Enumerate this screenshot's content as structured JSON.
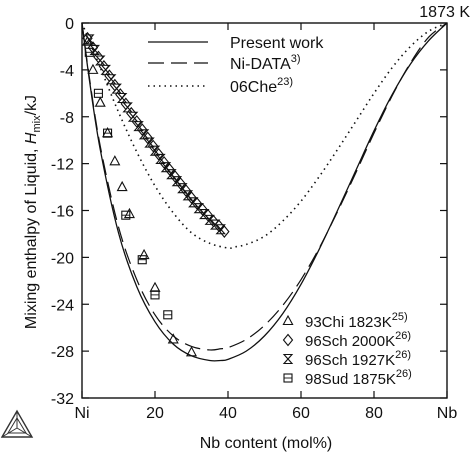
{
  "chart_data": {
    "type": "line",
    "temperature_label": "1873 K",
    "ylabel_main": "Mixing enthalpy of Liquid, ",
    "ylabel_symbol": "H",
    "ylabel_subscript": "mix",
    "ylabel_unit": "/kJ",
    "xlabel": "Nb content (mol%)",
    "xlim": [
      0,
      100
    ],
    "ylim": [
      -32,
      0
    ],
    "x_ticks": [
      {
        "value": 0,
        "label": "Ni"
      },
      {
        "value": 20,
        "label": "20"
      },
      {
        "value": 40,
        "label": "40"
      },
      {
        "value": 60,
        "label": "60"
      },
      {
        "value": 80,
        "label": "80"
      },
      {
        "value": 100,
        "label": "Nb"
      }
    ],
    "y_ticks": [
      {
        "value": 0,
        "label": "0"
      },
      {
        "value": -4,
        "label": "-4"
      },
      {
        "value": -8,
        "label": "-8"
      },
      {
        "value": -12,
        "label": "-12"
      },
      {
        "value": -16,
        "label": "-16"
      },
      {
        "value": -20,
        "label": "-20"
      },
      {
        "value": -24,
        "label": "-24"
      },
      {
        "value": -28,
        "label": "-28"
      },
      {
        "value": -32,
        "label": "-32"
      }
    ],
    "line_series": [
      {
        "name": "Present work",
        "sup": "",
        "style": "solid",
        "x": [
          0,
          2,
          5,
          10,
          15,
          20,
          25,
          30,
          35,
          38,
          40,
          45,
          50,
          55,
          60,
          65,
          70,
          75,
          80,
          85,
          90,
          95,
          100
        ],
        "y": [
          0,
          -4.8,
          -10.8,
          -17.9,
          -22.5,
          -25.5,
          -27.4,
          -28.4,
          -28.8,
          -28.8,
          -28.7,
          -28.0,
          -26.7,
          -24.8,
          -22.3,
          -19.3,
          -16.0,
          -12.6,
          -9.2,
          -6.1,
          -3.5,
          -1.5,
          0
        ]
      },
      {
        "name": "Ni-DATA",
        "sup": "3)",
        "style": "dashed",
        "x": [
          0,
          2,
          5,
          10,
          15,
          20,
          25,
          30,
          35,
          38,
          40,
          45,
          50,
          55,
          60,
          65,
          70,
          75,
          80,
          85,
          90,
          95,
          100
        ],
        "y": [
          0,
          -4.6,
          -10.5,
          -17.4,
          -21.9,
          -24.9,
          -26.7,
          -27.6,
          -27.9,
          -27.8,
          -27.7,
          -27.0,
          -25.8,
          -24.1,
          -21.9,
          -19.2,
          -16.1,
          -12.8,
          -9.4,
          -6.2,
          -3.4,
          -1.2,
          0
        ]
      },
      {
        "name": "06Che",
        "sup": "23)",
        "style": "dotted",
        "x": [
          0,
          5,
          10,
          15,
          20,
          25,
          30,
          35,
          40,
          42,
          45,
          50,
          55,
          60,
          65,
          70,
          75,
          80,
          85,
          90,
          95,
          100
        ],
        "y": [
          0,
          -3.8,
          -7.6,
          -11.0,
          -13.9,
          -16.2,
          -17.9,
          -18.8,
          -19.2,
          -19.1,
          -18.9,
          -18.2,
          -16.9,
          -15.2,
          -13.1,
          -10.8,
          -8.4,
          -6.0,
          -3.8,
          -2.0,
          -0.7,
          0
        ]
      }
    ],
    "marker_series": [
      {
        "name": "93Chi 1823K",
        "sup": "25)",
        "marker": "triangle",
        "x": [
          1.5,
          3.0,
          5.0,
          7.0,
          9.0,
          11.0,
          13.0,
          17.0,
          20.0,
          25.0,
          30.0
        ],
        "y": [
          -1.6,
          -4.0,
          -6.8,
          -9.4,
          -11.8,
          -14.0,
          -16.3,
          -19.8,
          -22.6,
          -27.0,
          -28.1
        ]
      },
      {
        "name": "96Sch 2000K",
        "sup": "26)",
        "marker": "diamond",
        "x": [
          1.5,
          3.0,
          4.5,
          6.0,
          7.5,
          9.0,
          10.5,
          12.0,
          13.5,
          15.0,
          16.5,
          18.0,
          19.5,
          21.0,
          22.5,
          24.0,
          25.5,
          27.0,
          28.5,
          30.0,
          31.5,
          33.0,
          34.5,
          36.0,
          37.5,
          39.0
        ],
        "y": [
          -1.3,
          -2.1,
          -2.9,
          -3.7,
          -4.5,
          -5.3,
          -6.1,
          -6.9,
          -7.7,
          -8.4,
          -9.1,
          -9.8,
          -10.5,
          -11.2,
          -11.9,
          -12.5,
          -13.1,
          -13.7,
          -14.3,
          -14.9,
          -15.4,
          -15.9,
          -16.4,
          -16.9,
          -17.3,
          -17.8
        ]
      },
      {
        "name": "96Sch 1927K",
        "sup": "26)",
        "marker": "hourglass",
        "x": [
          2.0,
          3.5,
          5.0,
          6.5,
          8.0,
          9.5,
          11.0,
          12.5,
          14.0,
          15.5,
          17.0,
          18.5,
          20.0,
          21.5,
          23.0,
          24.5,
          26.0,
          27.5,
          29.0,
          30.5,
          32.0,
          33.5,
          35.0,
          36.5,
          38.0
        ],
        "y": [
          -1.4,
          -2.3,
          -3.2,
          -4.0,
          -4.8,
          -5.6,
          -6.4,
          -7.2,
          -8.0,
          -8.8,
          -9.5,
          -10.2,
          -10.9,
          -11.6,
          -12.3,
          -12.9,
          -13.5,
          -14.1,
          -14.7,
          -15.3,
          -15.8,
          -16.3,
          -16.8,
          -17.2,
          -17.6
        ]
      },
      {
        "name": "98Sud 1875K",
        "sup": "26)",
        "marker": "square",
        "x": [
          2.0,
          4.5,
          7.0,
          12.0,
          16.5,
          20.0,
          23.5
        ],
        "y": [
          -2.5,
          -6.0,
          -9.4,
          -16.4,
          -20.2,
          -23.2,
          -24.9
        ]
      }
    ]
  }
}
